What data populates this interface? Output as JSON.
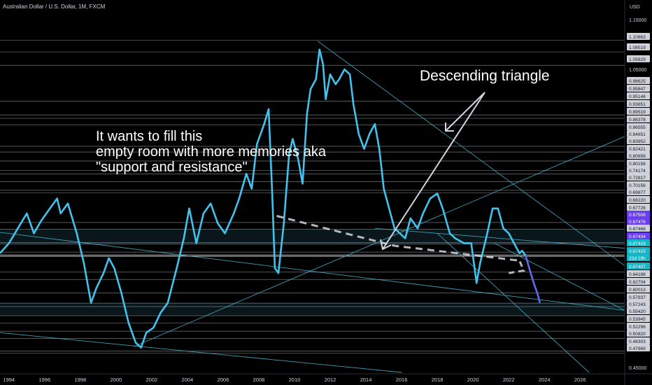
{
  "chart_data": {
    "type": "line",
    "symbol_title": "Australian Dollar / U.S. Dollar, 1M, FXCM",
    "currency_label": "USD",
    "x_tick_labels": [
      "1994",
      "1996",
      "1998",
      "2000",
      "2002",
      "2004",
      "2006",
      "2008",
      "2010",
      "2012",
      "2014",
      "2016",
      "2018",
      "2020",
      "2022",
      "2024",
      "2026"
    ],
    "xlim": [
      1993.5,
      2028.5
    ],
    "y_axis_labels": [
      "1.15000",
      "1.05000",
      "0.45000"
    ],
    "ylim": [
      0.44,
      1.17
    ],
    "grid": false,
    "series": [
      {
        "values": [
          [
            1993.5,
            0.68
          ],
          [
            1994.0,
            0.7
          ],
          [
            1994.5,
            0.73
          ],
          [
            1995.0,
            0.76
          ],
          [
            1995.4,
            0.72
          ],
          [
            1995.8,
            0.745
          ],
          [
            1996.3,
            0.77
          ],
          [
            1996.7,
            0.79
          ],
          [
            1996.9,
            0.76
          ],
          [
            1997.3,
            0.78
          ],
          [
            1997.8,
            0.72
          ],
          [
            1998.2,
            0.66
          ],
          [
            1998.6,
            0.58
          ],
          [
            1998.9,
            0.61
          ],
          [
            1999.3,
            0.64
          ],
          [
            1999.6,
            0.67
          ],
          [
            1999.9,
            0.65
          ],
          [
            2000.3,
            0.6
          ],
          [
            2000.7,
            0.54
          ],
          [
            2001.1,
            0.5
          ],
          [
            2001.4,
            0.49
          ],
          [
            2001.7,
            0.52
          ],
          [
            2002.1,
            0.53
          ],
          [
            2002.5,
            0.56
          ],
          [
            2002.9,
            0.58
          ],
          [
            2003.4,
            0.65
          ],
          [
            2003.8,
            0.71
          ],
          [
            2004.1,
            0.77
          ],
          [
            2004.5,
            0.7
          ],
          [
            2004.9,
            0.76
          ],
          [
            2005.3,
            0.78
          ],
          [
            2005.7,
            0.74
          ],
          [
            2006.1,
            0.72
          ],
          [
            2006.6,
            0.76
          ],
          [
            2006.9,
            0.79
          ],
          [
            2007.3,
            0.84
          ],
          [
            2007.6,
            0.81
          ],
          [
            2007.9,
            0.9
          ],
          [
            2008.3,
            0.94
          ],
          [
            2008.55,
            0.97
          ],
          [
            2008.75,
            0.8
          ],
          [
            2008.9,
            0.65
          ],
          [
            2009.1,
            0.64
          ],
          [
            2009.4,
            0.74
          ],
          [
            2009.7,
            0.88
          ],
          [
            2009.9,
            0.91
          ],
          [
            2010.2,
            0.87
          ],
          [
            2010.45,
            0.82
          ],
          [
            2010.7,
            0.96
          ],
          [
            2010.9,
            1.01
          ],
          [
            2011.2,
            1.03
          ],
          [
            2011.4,
            1.09
          ],
          [
            2011.6,
            1.06
          ],
          [
            2011.75,
            0.99
          ],
          [
            2012.0,
            1.04
          ],
          [
            2012.3,
            1.02
          ],
          [
            2012.5,
            1.03
          ],
          [
            2012.8,
            1.05
          ],
          [
            2013.1,
            1.04
          ],
          [
            2013.3,
            0.98
          ],
          [
            2013.6,
            0.92
          ],
          [
            2013.9,
            0.89
          ],
          [
            2014.2,
            0.92
          ],
          [
            2014.5,
            0.94
          ],
          [
            2014.75,
            0.89
          ],
          [
            2015.0,
            0.81
          ],
          [
            2015.3,
            0.77
          ],
          [
            2015.6,
            0.73
          ],
          [
            2015.9,
            0.72
          ],
          [
            2016.2,
            0.71
          ],
          [
            2016.5,
            0.75
          ],
          [
            2016.9,
            0.73
          ],
          [
            2017.2,
            0.76
          ],
          [
            2017.6,
            0.79
          ],
          [
            2018.0,
            0.8
          ],
          [
            2018.3,
            0.77
          ],
          [
            2018.7,
            0.72
          ],
          [
            2019.0,
            0.71
          ],
          [
            2019.5,
            0.7
          ],
          [
            2019.9,
            0.7
          ],
          [
            2020.2,
            0.62
          ],
          [
            2020.4,
            0.66
          ],
          [
            2020.8,
            0.72
          ],
          [
            2021.1,
            0.77
          ],
          [
            2021.4,
            0.77
          ],
          [
            2021.7,
            0.73
          ],
          [
            2022.0,
            0.72
          ],
          [
            2022.3,
            0.7
          ],
          [
            2022.6,
            0.68
          ],
          [
            2022.75,
            0.685
          ],
          [
            2022.95,
            0.675
          ],
          [
            2023.15,
            0.65
          ],
          [
            2023.4,
            0.62
          ],
          [
            2023.6,
            0.6
          ],
          [
            2023.75,
            0.58
          ]
        ]
      }
    ],
    "hlevels": [
      "1.10863",
      "1.08519",
      "1.05829",
      "0.98625",
      "0.95847",
      "0.95148",
      "0.93851",
      "0.89519",
      "0.88378",
      "0.86555",
      "0.84651",
      "0.83952",
      "0.82421",
      "0.80658",
      "0.80156",
      "0.74174",
      "0.72817",
      "0.70156",
      "0.69877",
      "0.68220",
      "0.67726",
      "0.67506",
      "0.67476",
      "0.67466",
      "0.67434",
      "0.67419",
      "0.67415",
      "22d 19h",
      "0.67407",
      "0.64188",
      "0.62704",
      "0.60013",
      "0.57937",
      "0.57243",
      "0.55420",
      "0.53945",
      "0.52296",
      "0.50820",
      "0.48303",
      "0.47869"
    ],
    "annotations": [
      {
        "lines": [
          "It wants to fill this",
          "empty room with more memories aka",
          "\"support and resistance\""
        ]
      },
      {
        "lines": [
          "Descending triangle"
        ]
      }
    ],
    "colors": {
      "background": "#000000",
      "price": "#42c3ee",
      "recent": "#5e6cf2",
      "hline": "#d1d4dc",
      "trendline": "#48b6d2",
      "arrow": "#d1d4dc",
      "text": "#ffffff",
      "axis_text": "#d1d4dc",
      "badge_gray": "#cfd2d9",
      "badge_purple": "#6a3df0",
      "badge_teal": "#17b5c8"
    }
  }
}
